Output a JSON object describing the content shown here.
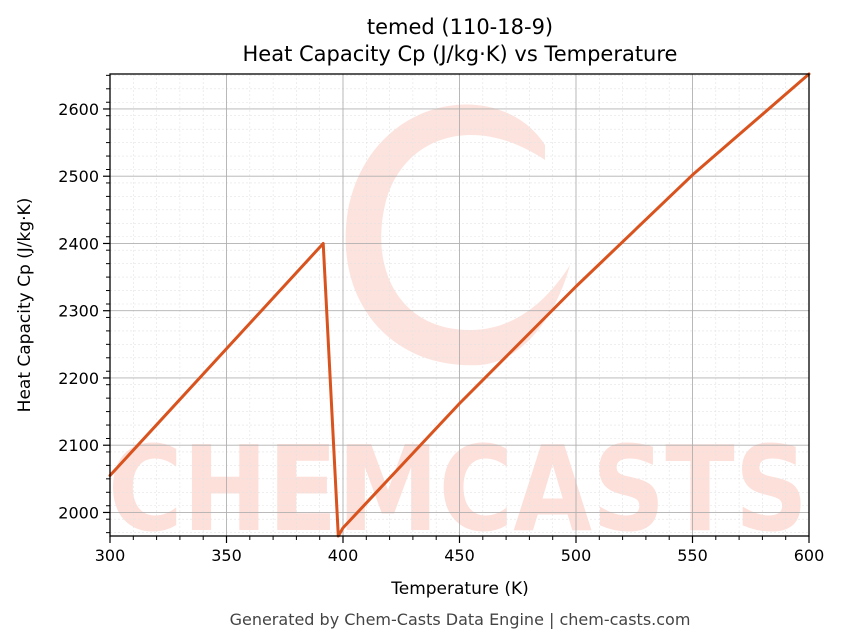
{
  "chart_data": {
    "type": "line",
    "title_line1": "temed (110-18-9)",
    "title_line2": "Heat Capacity Cp (J/kg·K) vs Temperature",
    "xlabel": "Temperature (K)",
    "ylabel": "Heat Capacity Cp (J/kg·K)",
    "xlim": [
      300,
      600
    ],
    "ylim": [
      1965,
      2652
    ],
    "x_ticks": [
      300,
      350,
      400,
      450,
      500,
      550,
      600
    ],
    "y_ticks": [
      2000,
      2100,
      2200,
      2300,
      2400,
      2500,
      2600
    ],
    "x_tick_labels": [
      "300",
      "350",
      "400",
      "450",
      "500",
      "550",
      "600"
    ],
    "y_tick_labels": [
      "2000",
      "2100",
      "2200",
      "2300",
      "2400",
      "2500",
      "2600"
    ],
    "grid": true,
    "series": [
      {
        "color": "#d9531e",
        "x": [
          300,
          391.5,
          398,
          400,
          450,
          500,
          550,
          600
        ],
        "y": [
          2055,
          2400,
          1965,
          1977,
          2162,
          2336,
          2502,
          2652
        ]
      }
    ],
    "watermark": "CHEMCASTS",
    "watermark_color": "#fde0da",
    "footer": "Generated by Chem-Casts Data Engine | chem-casts.com"
  }
}
